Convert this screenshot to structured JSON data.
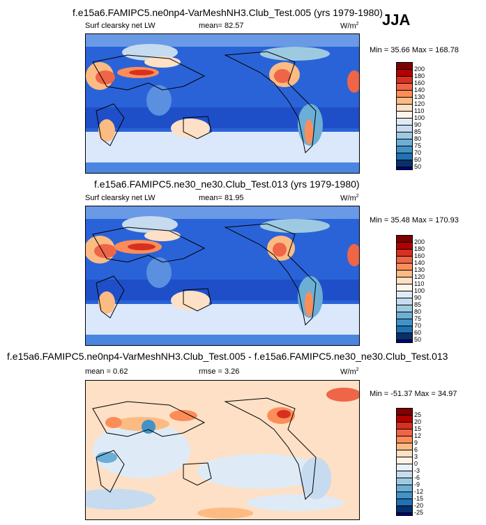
{
  "season": "JJA",
  "panels": [
    {
      "title": "f.e15a6.FAMIPC5.ne0np4-VarMeshNH3.Club_Test.005 (yrs 1979-1980)",
      "left_label": "Surf clearsky net LW",
      "mean": "mean=  82.57",
      "units": "W/m",
      "units_sup": "2",
      "minmax": "Min =  35.66 Max = 168.78",
      "colorbar_labels": [
        "200",
        "180",
        "160",
        "140",
        "130",
        "120",
        "110",
        "100",
        "90",
        "85",
        "80",
        "75",
        "70",
        "60",
        "50"
      ]
    },
    {
      "title": "f.e15a6.FAMIPC5.ne30_ne30.Club_Test.013 (yrs 1979-1980)",
      "left_label": "Surf clearsky net LW",
      "mean": "mean=  81.95",
      "units": "W/m",
      "units_sup": "2",
      "minmax": "Min =  35.48 Max = 170.93",
      "colorbar_labels": [
        "200",
        "180",
        "160",
        "140",
        "130",
        "120",
        "110",
        "100",
        "90",
        "85",
        "80",
        "75",
        "70",
        "60",
        "50"
      ]
    },
    {
      "title": "f.e15a6.FAMIPC5.ne0np4-VarMeshNH3.Club_Test.005 - f.e15a6.FAMIPC5.ne30_ne30.Club_Test.013",
      "left_label": "mean =  0.62",
      "mean": "rmse =  3.26",
      "units": "W/m",
      "units_sup": "2",
      "minmax": "Min = -51.37 Max =  34.97",
      "colorbar_labels": [
        "25",
        "20",
        "15",
        "12",
        "9",
        "6",
        "3",
        "0",
        "-3",
        "-6",
        "-9",
        "-12",
        "-15",
        "-20",
        "-25"
      ]
    }
  ],
  "colors": {
    "abs_scale": [
      "#7f0000",
      "#b30000",
      "#d7301f",
      "#ef6548",
      "#fc8d59",
      "#fdbb84",
      "#fde0c5",
      "#fff5eb",
      "#deebf7",
      "#c6dbef",
      "#9ecae1",
      "#6baed6",
      "#4292c6",
      "#2171b5",
      "#08306b",
      "#00007f"
    ],
    "diff_scale": [
      "#7f0000",
      "#b30000",
      "#d7301f",
      "#ef6548",
      "#fc8d59",
      "#fdbb84",
      "#fde0c5",
      "#fff1e6",
      "#e6f0fa",
      "#c6dbef",
      "#9ecae1",
      "#6baed6",
      "#4292c6",
      "#2171b5",
      "#08306b",
      "#00007f"
    ]
  }
}
